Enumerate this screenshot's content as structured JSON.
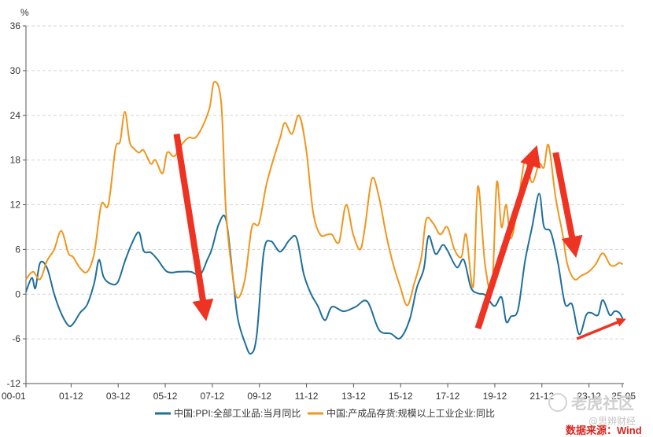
{
  "chart_data": {
    "type": "line",
    "ylabel": "%",
    "ylim": [
      -12,
      36
    ],
    "yticks": [
      "-12",
      "-6",
      "0",
      "6",
      "12",
      "18",
      "24",
      "30",
      "36"
    ],
    "xlim": [
      2000.0,
      2025.4
    ],
    "xticks": [
      "00-01",
      "01-12",
      "03-12",
      "05-12",
      "07-12",
      "09-12",
      "11-12",
      "13-12",
      "15-12",
      "17-12",
      "19-12",
      "21-12",
      "23-12",
      "25-05"
    ],
    "xtick_values": [
      2000.0,
      2001.917,
      2003.917,
      2005.917,
      2007.917,
      2009.917,
      2011.917,
      2013.917,
      2015.917,
      2017.917,
      2019.917,
      2021.917,
      2023.917,
      2025.333
    ],
    "grid": true,
    "legend_position": "bottom",
    "series": [
      {
        "name": "中国:PPI:全部工业品:当月同比",
        "color": "#1f6f99",
        "x": [
          2000.0,
          2000.25,
          2000.4,
          2000.6,
          2000.9,
          2001.2,
          2001.5,
          2001.8,
          2002.0,
          2002.3,
          2002.6,
          2002.9,
          2003.1,
          2003.3,
          2003.6,
          2003.9,
          2004.2,
          2004.5,
          2004.8,
          2005.0,
          2005.3,
          2005.6,
          2006.0,
          2006.5,
          2007.0,
          2007.4,
          2007.7,
          2007.9,
          2008.2,
          2008.5,
          2008.8,
          2009.0,
          2009.3,
          2009.55,
          2009.8,
          2010.1,
          2010.4,
          2010.8,
          2011.2,
          2011.5,
          2011.8,
          2012.1,
          2012.4,
          2012.7,
          2013.0,
          2013.5,
          2014.0,
          2014.5,
          2015.0,
          2015.5,
          2015.9,
          2016.3,
          2016.6,
          2016.9,
          2017.1,
          2017.4,
          2017.7,
          2017.9,
          2018.3,
          2018.6,
          2018.9,
          2019.2,
          2019.5,
          2019.9,
          2020.2,
          2020.4,
          2020.6,
          2020.9,
          2021.2,
          2021.5,
          2021.8,
          2022.0,
          2022.3,
          2022.6,
          2022.9,
          2023.2,
          2023.5,
          2023.8,
          2024.0,
          2024.3,
          2024.5,
          2024.8,
          2025.0,
          2025.2,
          2025.35
        ],
        "values": [
          0.3,
          2.2,
          0.8,
          4.2,
          3.5,
          0.0,
          -2.6,
          -4.2,
          -4.0,
          -2.5,
          -1.4,
          1.5,
          4.6,
          2.3,
          1.4,
          1.6,
          4.4,
          6.8,
          8.3,
          5.8,
          5.6,
          4.6,
          3.0,
          3.0,
          3.0,
          2.6,
          4.6,
          6.1,
          9.5,
          10.0,
          2.0,
          -3.3,
          -6.5,
          -8.0,
          -5.6,
          5.6,
          7.1,
          5.7,
          7.3,
          7.5,
          2.7,
          0.1,
          -1.6,
          -3.5,
          -1.7,
          -2.3,
          -1.7,
          -1.0,
          -4.8,
          -5.3,
          -5.9,
          -3.4,
          0.8,
          3.4,
          7.8,
          5.4,
          6.6,
          5.9,
          3.6,
          4.6,
          0.9,
          0.1,
          -0.1,
          -1.6,
          -0.4,
          -3.7,
          -3.0,
          -2.1,
          4.4,
          9.0,
          13.5,
          9.1,
          8.3,
          4.2,
          -1.3,
          -1.4,
          -5.4,
          -2.8,
          -2.5,
          -2.8,
          -0.8,
          -2.8,
          -2.3,
          -2.5,
          -3.3
        ]
      },
      {
        "name": "中国:产成品存货:规模以上工业企业:同比",
        "color": "#f0961c",
        "x": [
          2000.0,
          2000.3,
          2000.6,
          2000.9,
          2001.2,
          2001.5,
          2001.8,
          2002.0,
          2002.3,
          2002.6,
          2002.9,
          2003.2,
          2003.5,
          2003.8,
          2004.0,
          2004.2,
          2004.4,
          2004.6,
          2004.8,
          2005.0,
          2005.3,
          2005.5,
          2005.8,
          2006.0,
          2006.3,
          2006.6,
          2006.9,
          2007.2,
          2007.5,
          2007.8,
          2008.0,
          2008.3,
          2008.5,
          2008.8,
          2009.0,
          2009.3,
          2009.6,
          2009.9,
          2010.2,
          2010.5,
          2010.8,
          2011.0,
          2011.3,
          2011.6,
          2011.9,
          2012.2,
          2012.5,
          2012.8,
          2013.0,
          2013.3,
          2013.6,
          2013.9,
          2014.2,
          2014.4,
          2014.7,
          2015.0,
          2015.3,
          2015.6,
          2015.9,
          2016.2,
          2016.5,
          2016.8,
          2017.0,
          2017.3,
          2017.6,
          2017.9,
          2018.2,
          2018.5,
          2018.7,
          2019.0,
          2019.2,
          2019.5,
          2019.8,
          2020.0,
          2020.2,
          2020.4,
          2020.6,
          2020.9,
          2021.2,
          2021.5,
          2021.8,
          2022.0,
          2022.2,
          2022.5,
          2022.8,
          2023.0,
          2023.3,
          2023.6,
          2023.9,
          2024.2,
          2024.5,
          2024.8,
          2025.0,
          2025.2,
          2025.35
        ],
        "values": [
          2.0,
          3.0,
          2.0,
          4.5,
          6.0,
          8.5,
          5.5,
          5.0,
          3.5,
          3.0,
          5.5,
          12.0,
          12.0,
          19.5,
          20.5,
          24.5,
          20.5,
          19.5,
          19.0,
          19.3,
          17.5,
          18.0,
          16.2,
          19.0,
          18.5,
          20.0,
          21.0,
          21.0,
          22.5,
          25.0,
          28.5,
          25.5,
          11.0,
          2.0,
          -0.5,
          2.0,
          9.0,
          9.5,
          14.5,
          18.0,
          21.0,
          23.0,
          21.5,
          24.0,
          19.5,
          11.0,
          8.0,
          8.0,
          8.0,
          7.0,
          12.0,
          8.0,
          6.0,
          9.0,
          15.5,
          13.0,
          8.0,
          4.0,
          1.0,
          -1.5,
          1.5,
          5.0,
          10.0,
          9.5,
          8.0,
          9.0,
          6.0,
          5.0,
          8.0,
          1.0,
          14.5,
          4.0,
          1.0,
          15.0,
          9.0,
          12.0,
          7.5,
          12.0,
          18.0,
          15.0,
          17.5,
          17.0,
          20.0,
          13.0,
          8.0,
          4.0,
          2.0,
          2.5,
          3.0,
          4.0,
          5.5,
          4.0,
          3.8,
          4.2,
          4.0
        ]
      }
    ]
  },
  "annotation_arrows": [
    {
      "meaning": "decline",
      "color": "#ee3322",
      "from": [
        2006.4,
        21.5
      ],
      "to": [
        2007.6,
        -2.5
      ]
    },
    {
      "meaning": "rise",
      "color": "#ee3322",
      "from": [
        2019.2,
        -4.6
      ],
      "to": [
        2021.6,
        18.9
      ]
    },
    {
      "meaning": "decline",
      "color": "#ee3322",
      "from": [
        2022.5,
        19.0
      ],
      "to": [
        2023.3,
        6.0
      ]
    },
    {
      "meaning": "turn up",
      "color": "#ee3322",
      "from": [
        2023.4,
        -6.0
      ],
      "to": [
        2025.35,
        -3.5
      ]
    }
  ],
  "source_label": "数据来源：Wind",
  "watermark": {
    "brand": "老虎社区",
    "handle": "@思辨财经"
  }
}
